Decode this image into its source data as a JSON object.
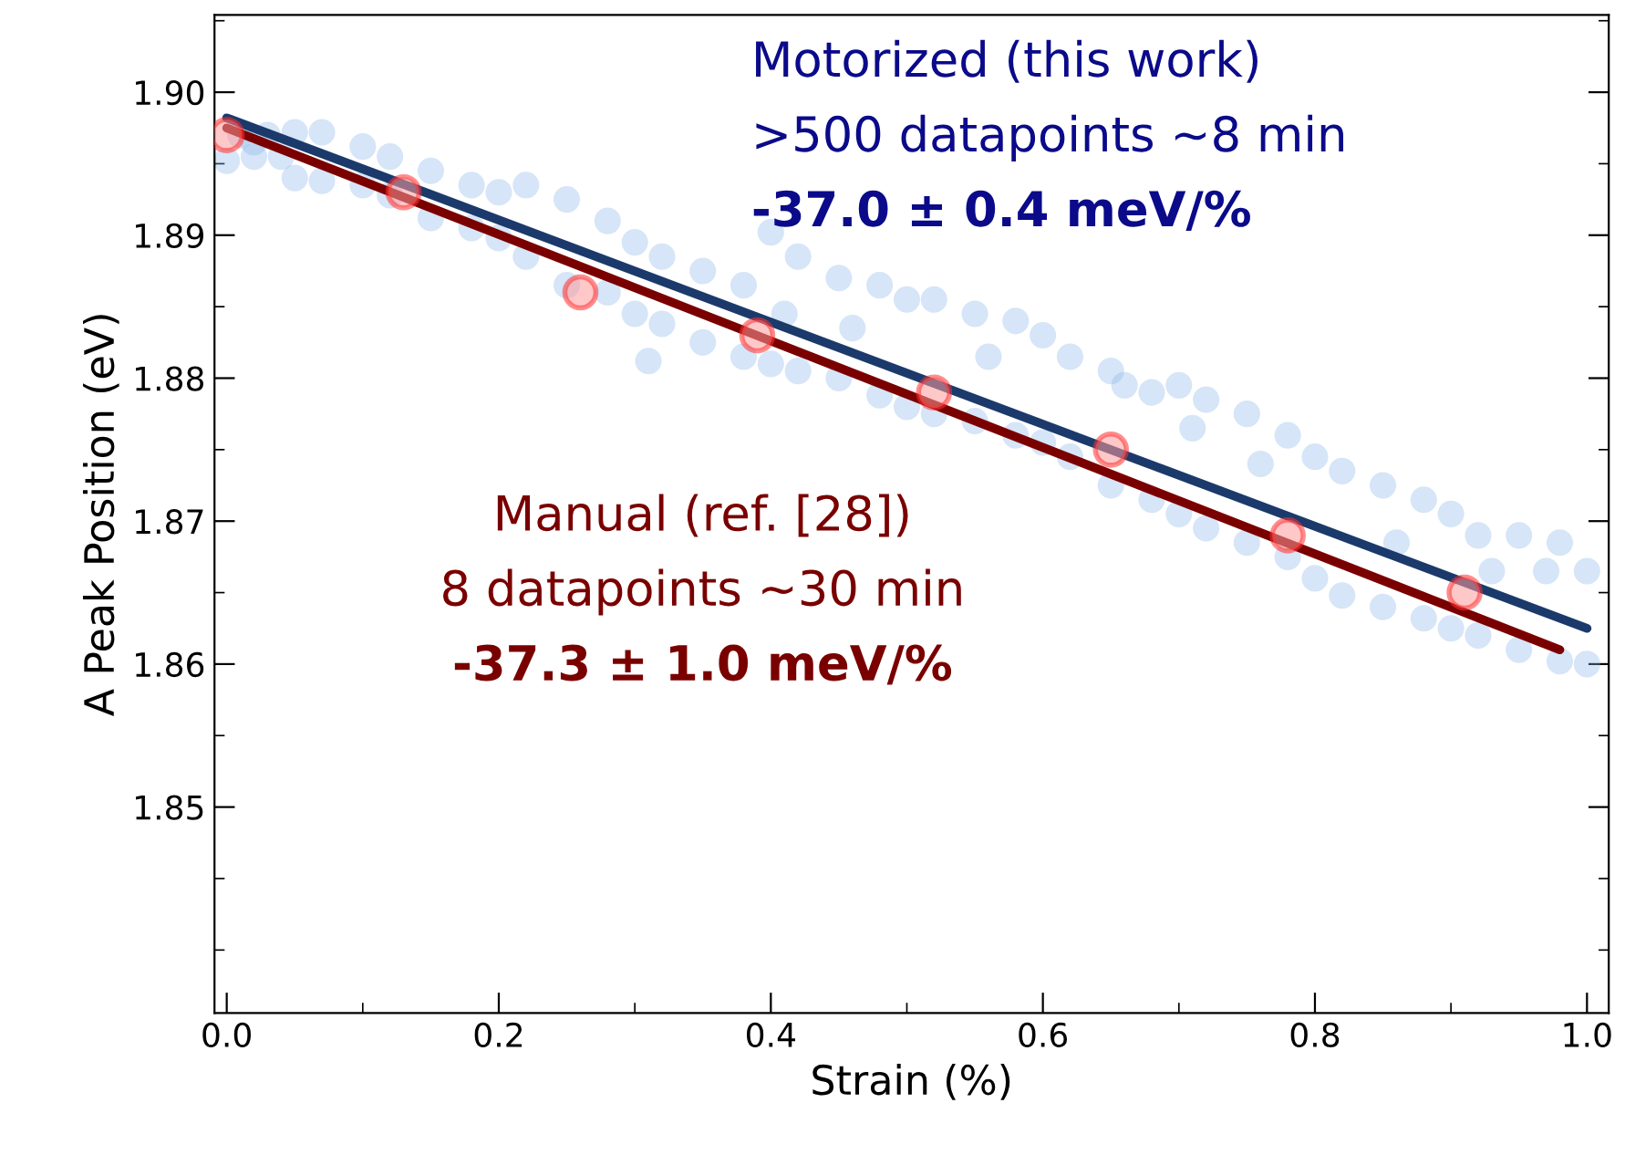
{
  "chart_data": {
    "type": "scatter",
    "xlabel": "Strain (%)",
    "ylabel": "A Peak Position (eV)",
    "xlim": [
      -0.009,
      1.016
    ],
    "ylim": [
      1.8356,
      1.9054
    ],
    "xticks": [
      {
        "value": 0,
        "label": "0.0"
      },
      0.2,
      0.4,
      0.6,
      0.8,
      {
        "value": 1,
        "label": "1.0"
      }
    ],
    "yticks": [
      1.85,
      1.86,
      1.87,
      1.88,
      1.89,
      {
        "value": 1.9,
        "label": "1.90"
      }
    ],
    "grid": false,
    "legend": false,
    "annotations": [
      "Motorized (this work)",
      ">500 datapoints ~8 min",
      "-37.0 ± 0.4 meV/%",
      "Manual (ref. [28])",
      "8 datapoints ~30 min",
      "-37.3 ± 1.0 meV/%"
    ],
    "series": [
      {
        "marker": "circle",
        "color": "#8ab4e8",
        "x": [
          0.0,
          0.01,
          0.02,
          0.03,
          0.05,
          0.07,
          0.1,
          0.12,
          0.15,
          0.18,
          0.2,
          0.22,
          0.25,
          0.28,
          0.3,
          0.32,
          0.35,
          0.38,
          0.4,
          0.42,
          0.45,
          0.48,
          0.5,
          0.52,
          0.55,
          0.58,
          0.6,
          0.62,
          0.65,
          0.68,
          0.7,
          0.72,
          0.75,
          0.78,
          0.8,
          0.82,
          0.85,
          0.88,
          0.9,
          0.92,
          0.95,
          0.98,
          1.0,
          0.04,
          0.02,
          0.05,
          0.07,
          0.1,
          0.12,
          0.15,
          0.18,
          0.2,
          0.22,
          0.25,
          0.28,
          0.3,
          0.32,
          0.35,
          0.38,
          0.4,
          0.42,
          0.45,
          0.48,
          0.5,
          0.52,
          0.55,
          0.58,
          0.6,
          0.62,
          0.65,
          0.68,
          0.7,
          0.72,
          0.75,
          0.78,
          0.8,
          0.82,
          0.85,
          0.88,
          0.9,
          0.92,
          0.95,
          0.98,
          1.0,
          0.31,
          0.41,
          0.46,
          0.56,
          0.66,
          0.71,
          0.76,
          0.86,
          0.93,
          0.97
        ],
        "values": [
          1.8952,
          1.897,
          1.8965,
          1.897,
          1.8972,
          1.8972,
          1.8962,
          1.8955,
          1.8945,
          1.8935,
          1.893,
          1.8935,
          1.8925,
          1.891,
          1.8895,
          1.8885,
          1.8875,
          1.8865,
          1.8902,
          1.8885,
          1.887,
          1.8865,
          1.8855,
          1.8855,
          1.8845,
          1.884,
          1.883,
          1.8815,
          1.8805,
          1.879,
          1.8795,
          1.8785,
          1.8775,
          1.876,
          1.8745,
          1.8735,
          1.8725,
          1.8715,
          1.8705,
          1.869,
          1.869,
          1.8685,
          1.8665,
          1.8955,
          1.8955,
          1.894,
          1.8938,
          1.8935,
          1.8928,
          1.8912,
          1.8905,
          1.8898,
          1.8885,
          1.8865,
          1.886,
          1.8845,
          1.8838,
          1.8825,
          1.8815,
          1.881,
          1.8805,
          1.88,
          1.8788,
          1.878,
          1.8775,
          1.877,
          1.876,
          1.8755,
          1.8745,
          1.8725,
          1.8715,
          1.8705,
          1.8695,
          1.8685,
          1.8675,
          1.866,
          1.8648,
          1.864,
          1.8632,
          1.8625,
          1.862,
          1.861,
          1.8602,
          1.86,
          1.8812,
          1.8845,
          1.8835,
          1.8815,
          1.8795,
          1.8765,
          1.874,
          1.8685,
          1.8665,
          1.8665
        ]
      },
      {
        "type": "line",
        "color": "#1b3a6b",
        "x": [
          0.0,
          1.0
        ],
        "values": [
          1.8982,
          1.8625
        ]
      },
      {
        "type": "line",
        "color": "#7a0000",
        "x": [
          0.0,
          0.98
        ],
        "values": [
          1.8975,
          1.861
        ]
      },
      {
        "marker": "circle",
        "color": "#ff9a9a",
        "x": [
          0.0,
          0.13,
          0.26,
          0.39,
          0.52,
          0.65,
          0.78,
          0.91
        ],
        "values": [
          1.897,
          1.893,
          1.886,
          1.883,
          1.879,
          1.875,
          1.869,
          1.865
        ]
      }
    ]
  }
}
